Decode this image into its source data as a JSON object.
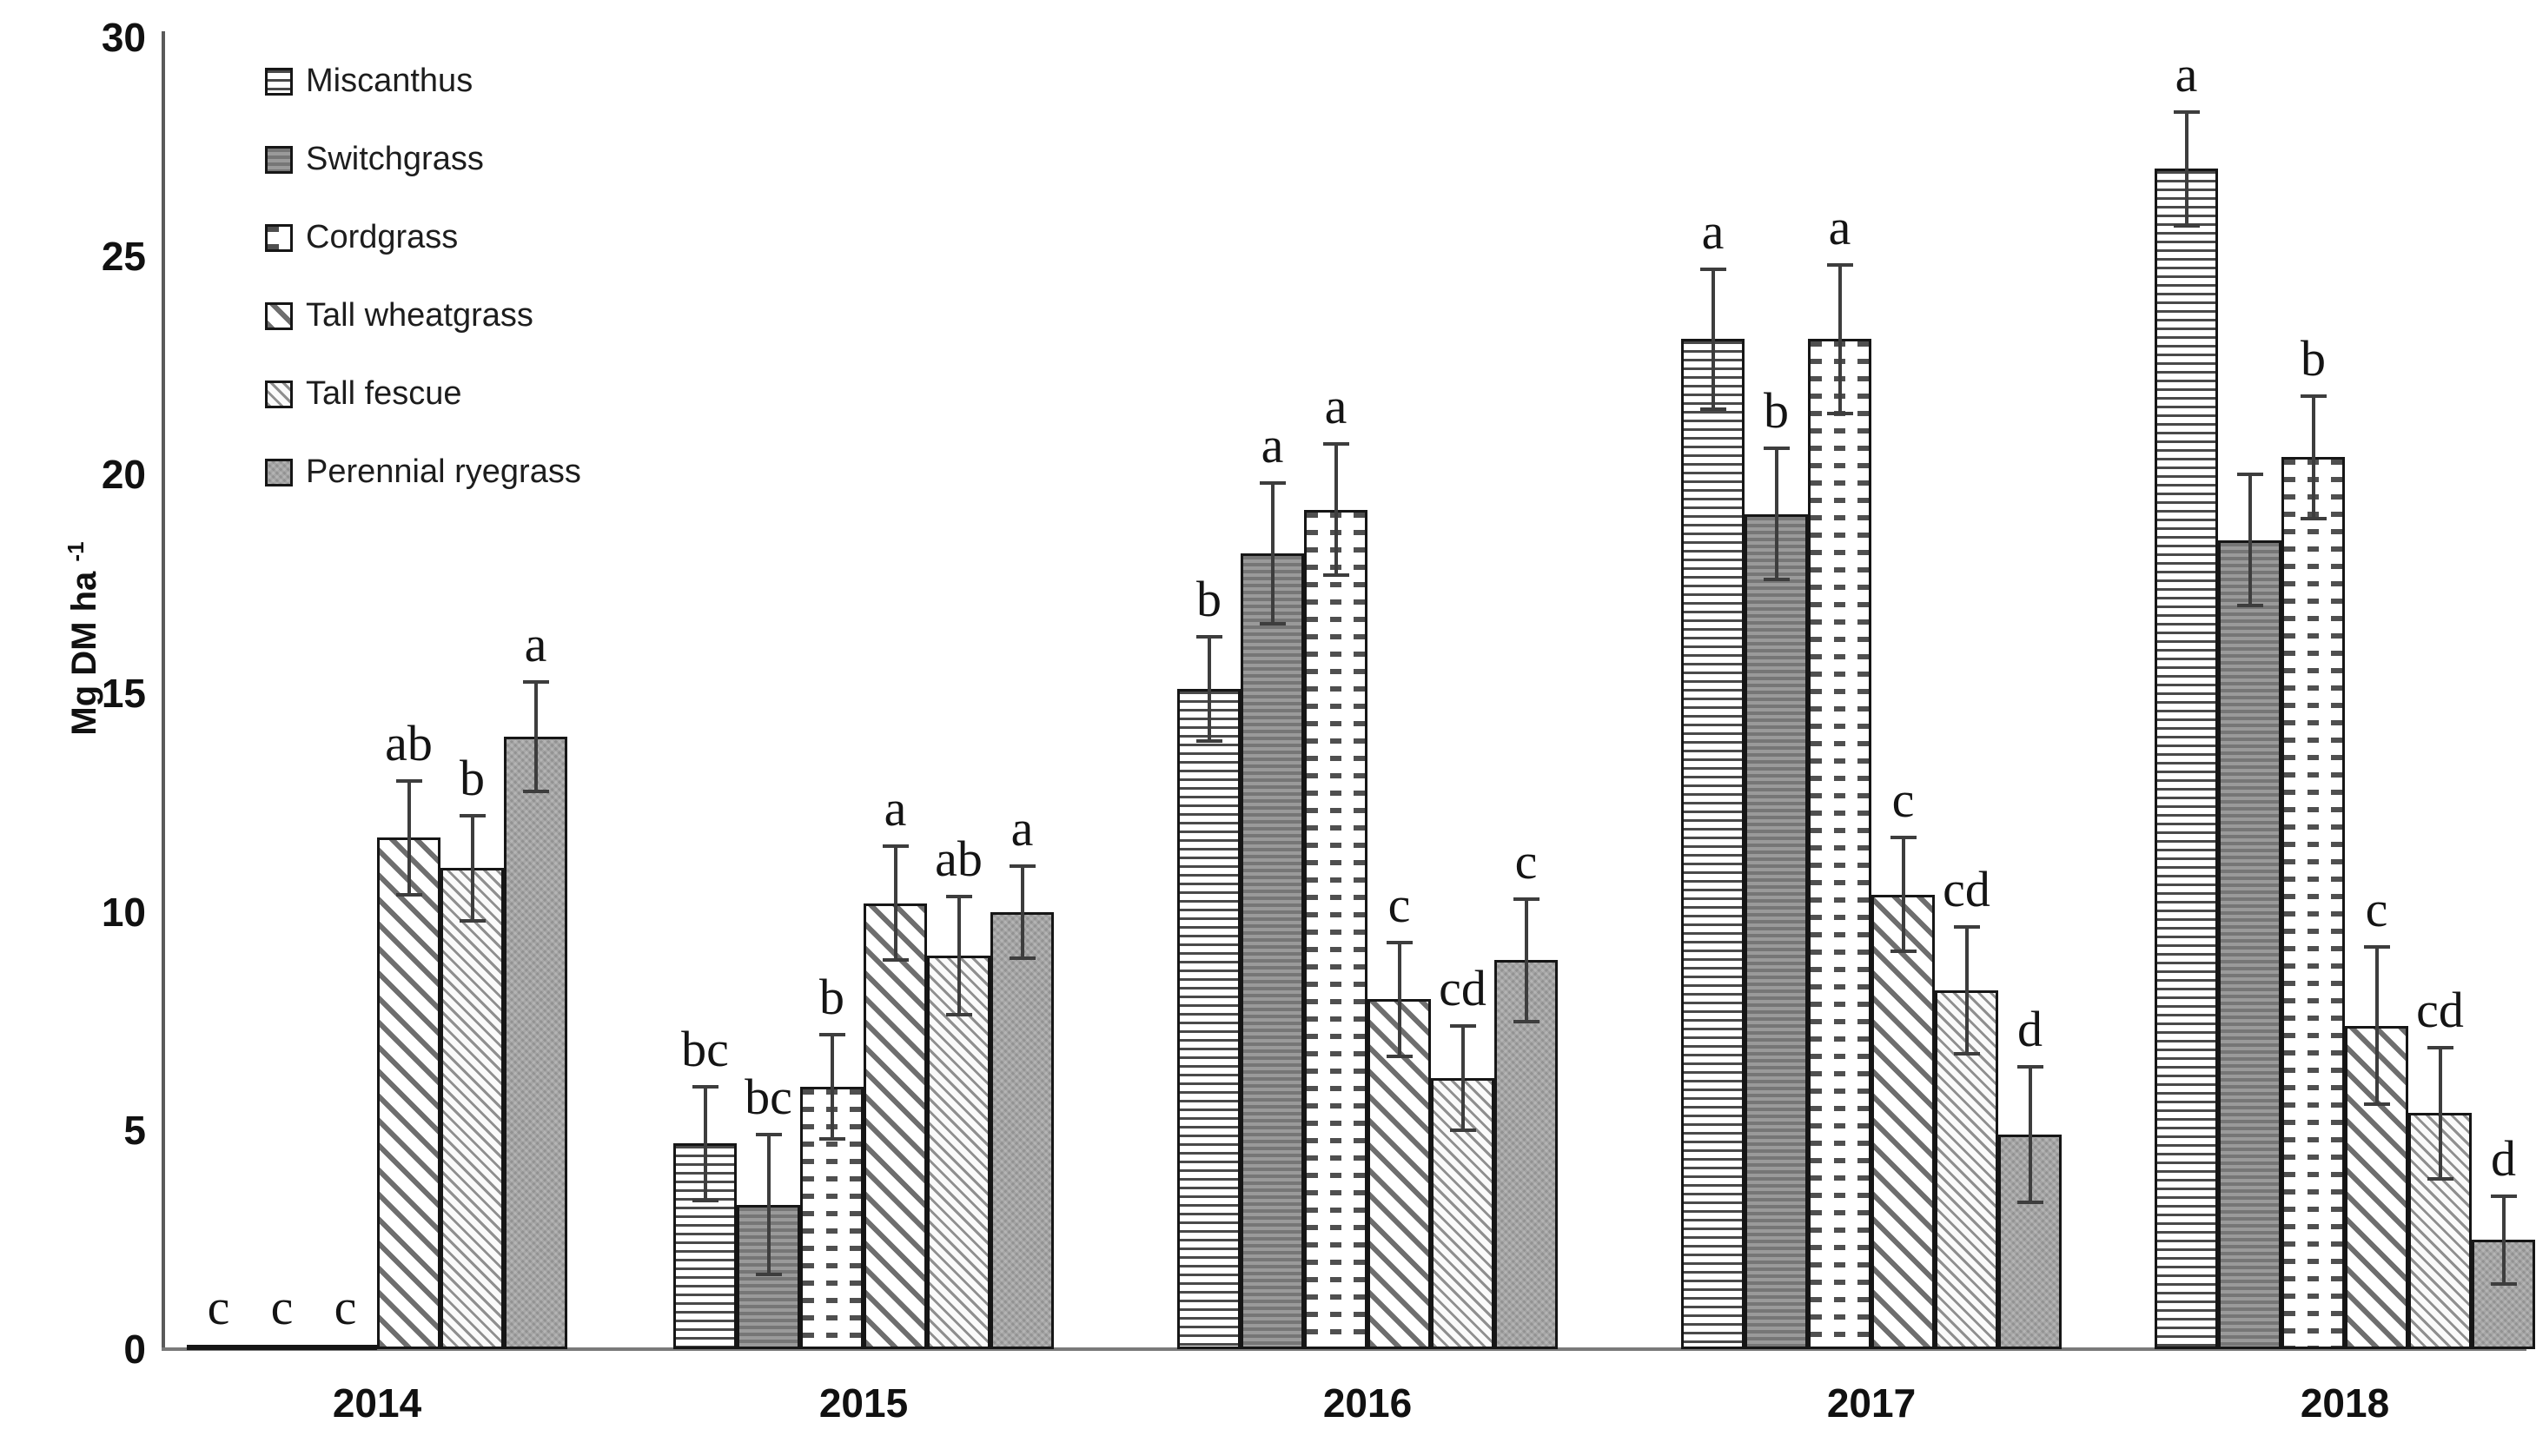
{
  "chart_data": {
    "type": "bar",
    "title": "",
    "ylabel_base": "Mg DM ha",
    "ylabel_sup": "-1",
    "xlabel": "",
    "ylim": [
      0,
      30
    ],
    "yticks": [
      0,
      5,
      10,
      15,
      20,
      25,
      30
    ],
    "grid": false,
    "legend_position": "top-left",
    "categories": [
      "2014",
      "2015",
      "2016",
      "2017",
      "2018"
    ],
    "series": [
      {
        "name": "Miscanthus",
        "pattern": "horizontal-lines",
        "values": [
          0.1,
          4.7,
          15.1,
          23.1,
          27.0
        ],
        "errors": [
          0,
          1.3,
          1.2,
          1.6,
          1.3
        ],
        "letters": [
          "c",
          "bc",
          "b",
          "a",
          "a"
        ]
      },
      {
        "name": "Switchgrass",
        "pattern": "dark-horizontal",
        "values": [
          0.1,
          3.3,
          18.2,
          19.1,
          18.5
        ],
        "errors": [
          0,
          1.6,
          1.6,
          1.5,
          1.5
        ],
        "letters": [
          "c",
          "bc",
          "a",
          "b",
          ""
        ]
      },
      {
        "name": "Cordgrass",
        "pattern": "dashes",
        "values": [
          0.1,
          6.0,
          19.2,
          23.1,
          20.4
        ],
        "errors": [
          0,
          1.2,
          1.5,
          1.7,
          1.4
        ],
        "letters": [
          "c",
          "b",
          "a",
          "a",
          "b"
        ]
      },
      {
        "name": "Tall wheatgrass",
        "pattern": "diagonal-wide",
        "values": [
          11.7,
          10.2,
          8.0,
          10.4,
          7.4
        ],
        "errors": [
          1.3,
          1.3,
          1.3,
          1.3,
          1.8
        ],
        "letters": [
          "ab",
          "a",
          "c",
          "c",
          "c"
        ]
      },
      {
        "name": "Tall fescue",
        "pattern": "diagonal-fine",
        "values": [
          11.0,
          9.0,
          6.2,
          8.2,
          5.4
        ],
        "errors": [
          1.2,
          1.35,
          1.2,
          1.45,
          1.5
        ],
        "letters": [
          "b",
          "ab",
          "cd",
          "cd",
          "cd"
        ]
      },
      {
        "name": "Perennial ryegrass",
        "pattern": "solid-gray",
        "values": [
          14.0,
          10.0,
          8.9,
          4.9,
          2.5
        ],
        "errors": [
          1.25,
          1.05,
          1.4,
          1.55,
          1.0
        ],
        "letters": [
          "a",
          "a",
          "c",
          "d",
          "d"
        ]
      }
    ]
  }
}
